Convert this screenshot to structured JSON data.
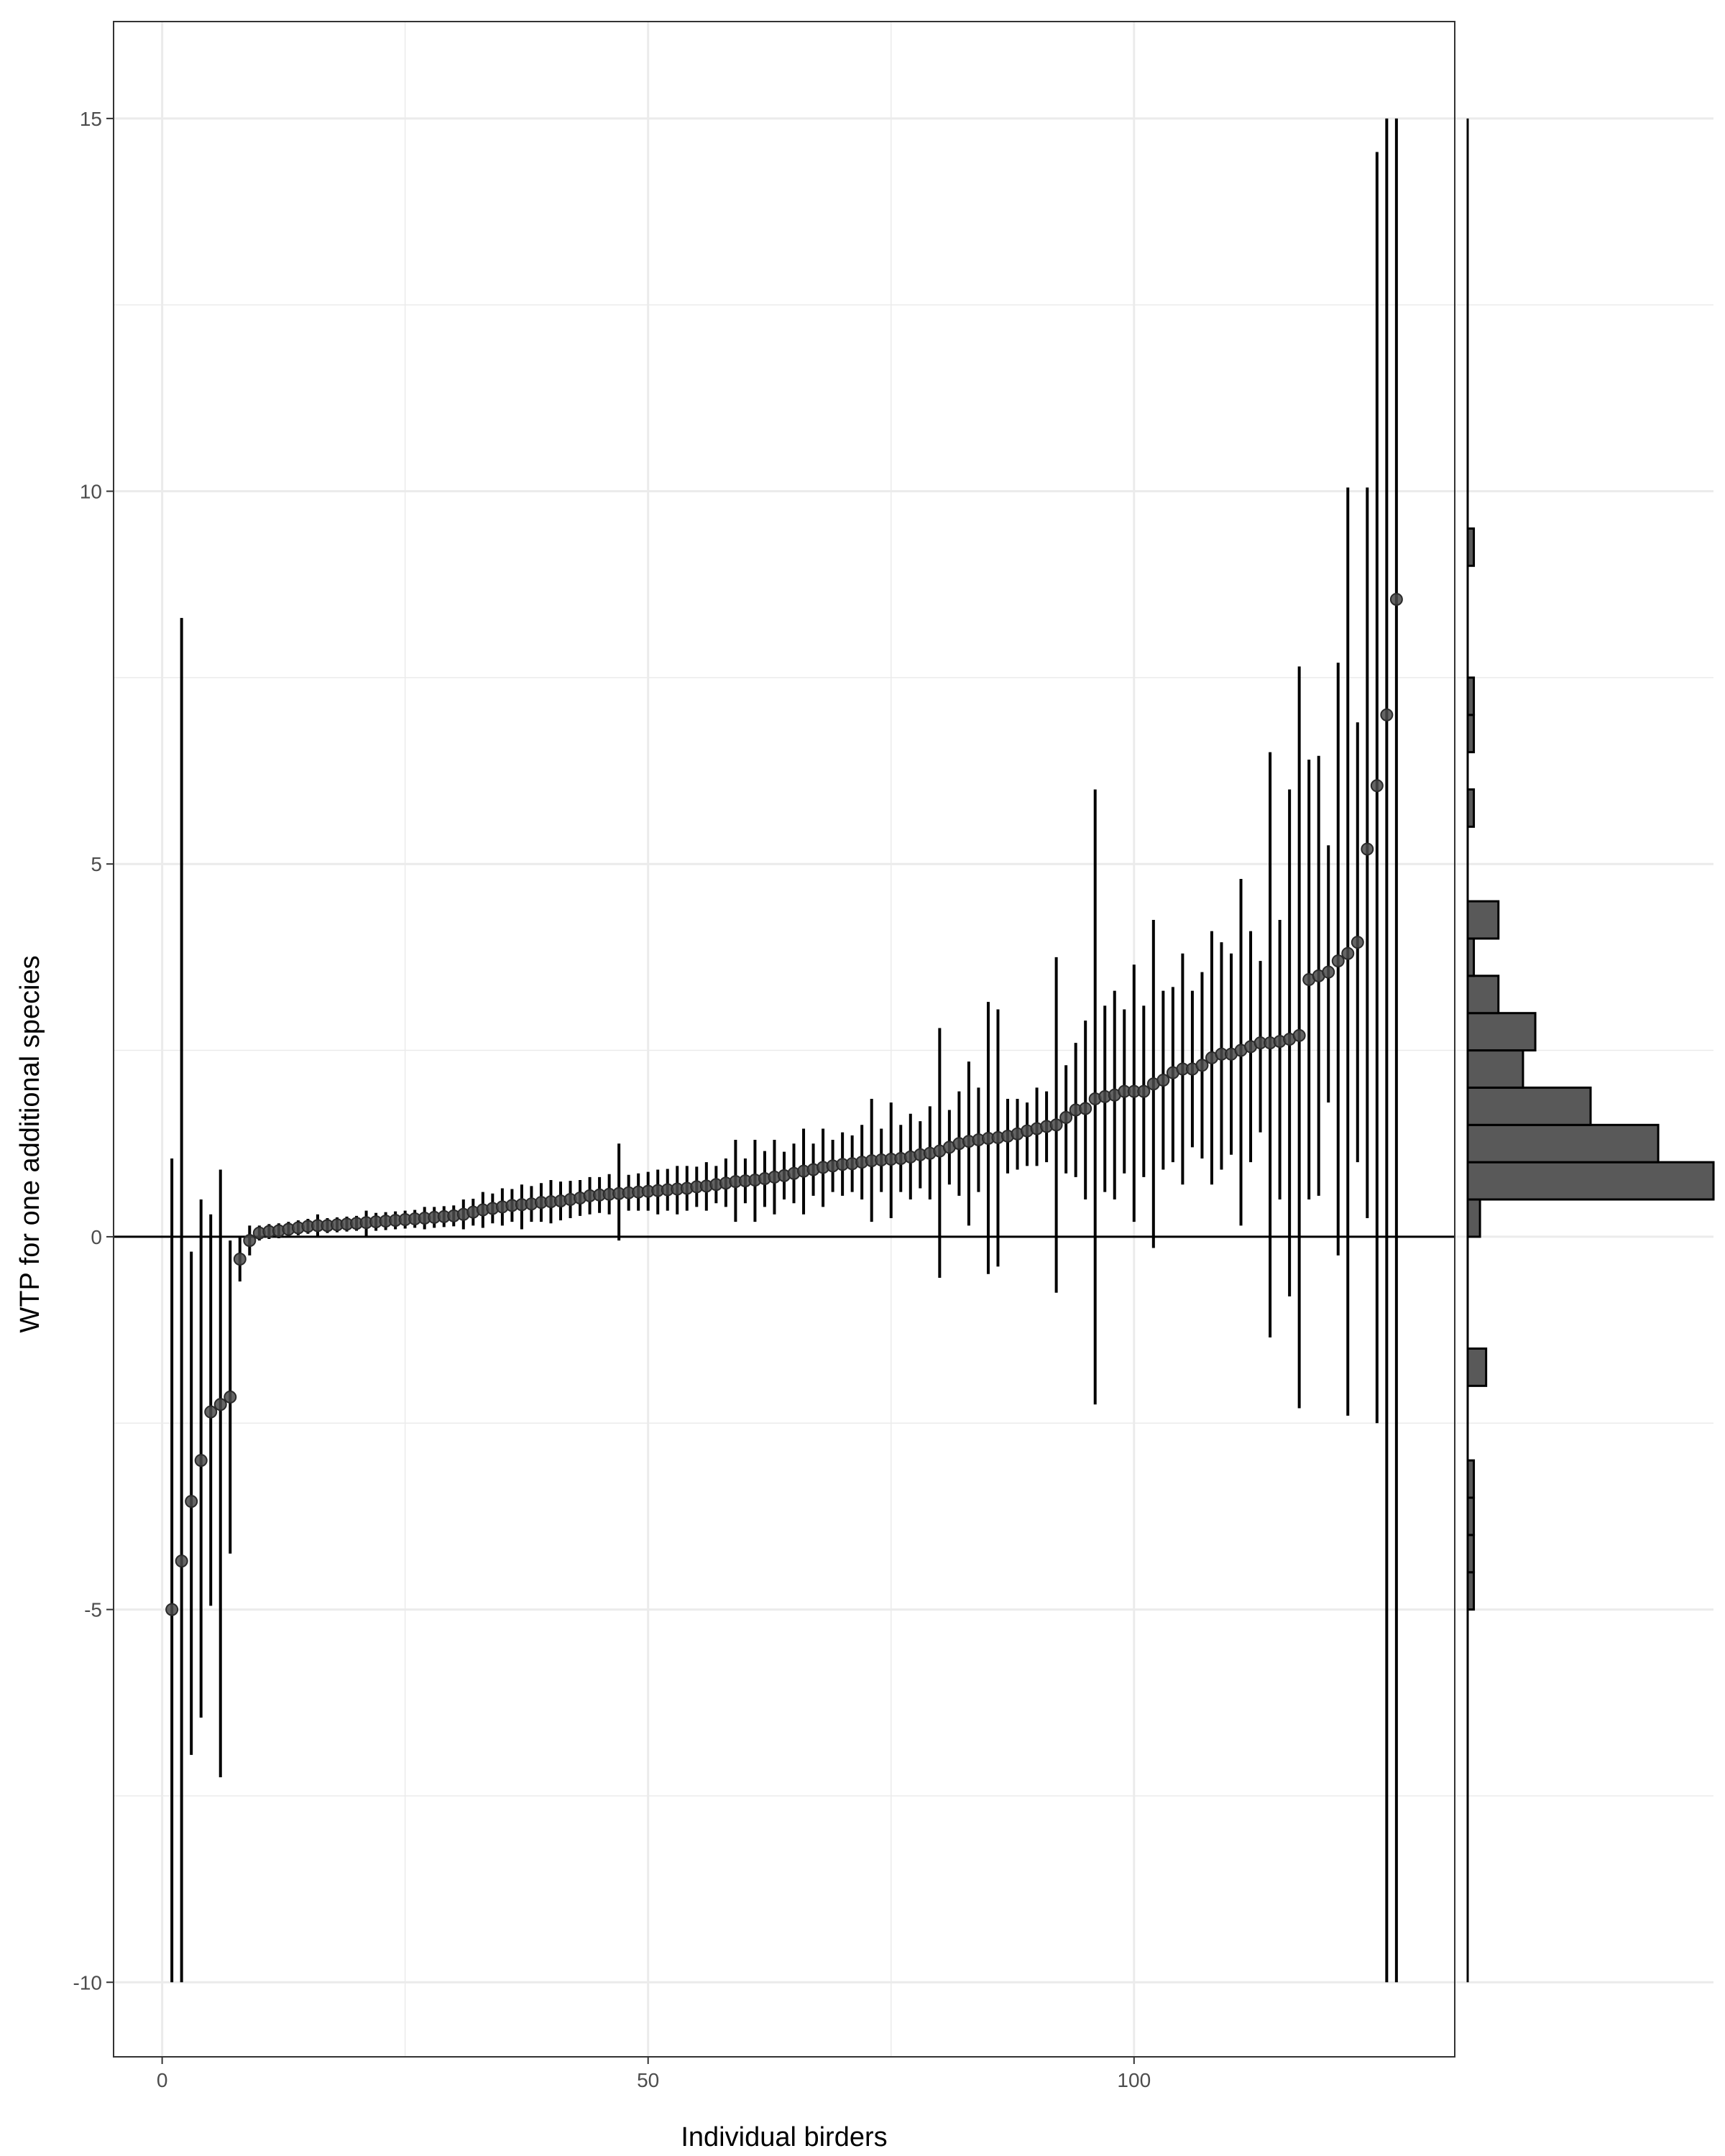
{
  "chart_data": {
    "type": "scatter",
    "xlabel": "Individual birders",
    "ylabel": "WTP for one additional species",
    "xlim": [
      -5,
      133
    ],
    "ylim": [
      -11,
      16.3
    ],
    "x_ticks": [
      0,
      50,
      100
    ],
    "y_ticks": [
      -10,
      -5,
      0,
      5,
      10,
      15
    ],
    "grid": true,
    "reference_line_y": 0,
    "colors": {
      "points": "#4a4a4a",
      "bars": "#595959",
      "lines": "#000000",
      "grid": "#ebebeb"
    },
    "series": [
      {
        "values": [
          [
            1,
            -5.0,
            -10.0,
            1.05
          ],
          [
            2,
            -4.35,
            -10.0,
            8.3
          ],
          [
            3,
            -3.55,
            -6.95,
            -0.2
          ],
          [
            4,
            -3.0,
            -6.45,
            0.5
          ],
          [
            5,
            -2.35,
            -4.95,
            0.3
          ],
          [
            6,
            -2.25,
            -7.25,
            0.9
          ],
          [
            7,
            -2.15,
            -4.25,
            -0.05
          ],
          [
            8,
            -0.3,
            -0.6,
            0.0
          ],
          [
            9,
            -0.05,
            -0.25,
            0.15
          ],
          [
            10,
            0.05,
            -0.05,
            0.15
          ],
          [
            11,
            0.07,
            -0.03,
            0.17
          ],
          [
            12,
            0.08,
            -0.02,
            0.18
          ],
          [
            13,
            0.1,
            0.0,
            0.2
          ],
          [
            14,
            0.12,
            0.02,
            0.22
          ],
          [
            15,
            0.14,
            0.04,
            0.24
          ],
          [
            16,
            0.15,
            0.0,
            0.3
          ],
          [
            17,
            0.15,
            0.05,
            0.25
          ],
          [
            18,
            0.16,
            0.06,
            0.26
          ],
          [
            19,
            0.17,
            0.07,
            0.27
          ],
          [
            20,
            0.18,
            0.08,
            0.28
          ],
          [
            21,
            0.19,
            0.0,
            0.35
          ],
          [
            22,
            0.2,
            0.08,
            0.32
          ],
          [
            23,
            0.21,
            0.09,
            0.33
          ],
          [
            24,
            0.22,
            0.1,
            0.34
          ],
          [
            25,
            0.23,
            0.11,
            0.35
          ],
          [
            26,
            0.24,
            0.12,
            0.36
          ],
          [
            27,
            0.25,
            0.1,
            0.4
          ],
          [
            28,
            0.26,
            0.12,
            0.4
          ],
          [
            29,
            0.27,
            0.13,
            0.41
          ],
          [
            30,
            0.28,
            0.14,
            0.42
          ],
          [
            31,
            0.3,
            0.1,
            0.5
          ],
          [
            32,
            0.33,
            0.15,
            0.51
          ],
          [
            33,
            0.36,
            0.12,
            0.6
          ],
          [
            34,
            0.38,
            0.18,
            0.58
          ],
          [
            35,
            0.4,
            0.15,
            0.65
          ],
          [
            36,
            0.42,
            0.2,
            0.64
          ],
          [
            37,
            0.43,
            0.1,
            0.7
          ],
          [
            38,
            0.44,
            0.2,
            0.68
          ],
          [
            39,
            0.46,
            0.2,
            0.72
          ],
          [
            40,
            0.47,
            0.18,
            0.76
          ],
          [
            41,
            0.48,
            0.22,
            0.74
          ],
          [
            42,
            0.5,
            0.25,
            0.75
          ],
          [
            43,
            0.52,
            0.28,
            0.76
          ],
          [
            44,
            0.55,
            0.3,
            0.8
          ],
          [
            45,
            0.56,
            0.32,
            0.8
          ],
          [
            46,
            0.57,
            0.3,
            0.84
          ],
          [
            47,
            0.58,
            -0.05,
            1.25
          ],
          [
            48,
            0.59,
            0.35,
            0.83
          ],
          [
            49,
            0.6,
            0.35,
            0.85
          ],
          [
            50,
            0.61,
            0.35,
            0.87
          ],
          [
            51,
            0.62,
            0.3,
            0.9
          ],
          [
            52,
            0.63,
            0.35,
            0.91
          ],
          [
            53,
            0.64,
            0.3,
            0.95
          ],
          [
            54,
            0.65,
            0.35,
            0.95
          ],
          [
            55,
            0.67,
            0.4,
            0.94
          ],
          [
            56,
            0.68,
            0.35,
            1.0
          ],
          [
            57,
            0.7,
            0.45,
            0.95
          ],
          [
            58,
            0.72,
            0.4,
            1.05
          ],
          [
            59,
            0.74,
            0.2,
            1.3
          ],
          [
            60,
            0.75,
            0.45,
            1.05
          ],
          [
            61,
            0.76,
            0.2,
            1.3
          ],
          [
            62,
            0.78,
            0.4,
            1.15
          ],
          [
            63,
            0.8,
            0.3,
            1.3
          ],
          [
            64,
            0.82,
            0.5,
            1.14
          ],
          [
            65,
            0.85,
            0.45,
            1.25
          ],
          [
            66,
            0.88,
            0.3,
            1.45
          ],
          [
            67,
            0.9,
            0.55,
            1.25
          ],
          [
            68,
            0.93,
            0.4,
            1.45
          ],
          [
            69,
            0.95,
            0.6,
            1.3
          ],
          [
            70,
            0.97,
            0.55,
            1.4
          ],
          [
            71,
            0.98,
            0.6,
            1.36
          ],
          [
            72,
            1.0,
            0.5,
            1.5
          ],
          [
            73,
            1.02,
            0.2,
            1.85
          ],
          [
            74,
            1.03,
            0.6,
            1.45
          ],
          [
            75,
            1.04,
            0.25,
            1.8
          ],
          [
            76,
            1.05,
            0.6,
            1.5
          ],
          [
            77,
            1.07,
            0.5,
            1.65
          ],
          [
            78,
            1.1,
            0.65,
            1.55
          ],
          [
            79,
            1.12,
            0.5,
            1.75
          ],
          [
            80,
            1.15,
            -0.55,
            2.8
          ],
          [
            81,
            1.2,
            0.7,
            1.7
          ],
          [
            82,
            1.25,
            0.55,
            1.95
          ],
          [
            83,
            1.28,
            0.15,
            2.35
          ],
          [
            84,
            1.3,
            0.6,
            2.0
          ],
          [
            85,
            1.32,
            -0.5,
            3.15
          ],
          [
            86,
            1.33,
            -0.4,
            3.05
          ],
          [
            87,
            1.35,
            0.85,
            1.85
          ],
          [
            88,
            1.38,
            0.9,
            1.85
          ],
          [
            89,
            1.42,
            0.95,
            1.8
          ],
          [
            90,
            1.45,
            0.95,
            2.0
          ],
          [
            91,
            1.48,
            1.0,
            1.95
          ],
          [
            92,
            1.5,
            -0.75,
            3.75
          ],
          [
            93,
            1.6,
            0.85,
            2.3
          ],
          [
            94,
            1.7,
            0.8,
            2.6
          ],
          [
            95,
            1.72,
            0.5,
            2.9
          ],
          [
            96,
            1.85,
            -2.25,
            6.0
          ],
          [
            97,
            1.88,
            0.6,
            3.1
          ],
          [
            98,
            1.9,
            0.5,
            3.3
          ],
          [
            99,
            1.95,
            0.85,
            3.05
          ],
          [
            100,
            1.95,
            0.2,
            3.65
          ],
          [
            101,
            1.95,
            0.8,
            3.1
          ],
          [
            102,
            2.05,
            -0.15,
            4.25
          ],
          [
            103,
            2.1,
            0.9,
            3.3
          ],
          [
            104,
            2.2,
            1.0,
            3.35
          ],
          [
            105,
            2.25,
            0.7,
            3.8
          ],
          [
            106,
            2.25,
            1.2,
            3.3
          ],
          [
            107,
            2.3,
            1.05,
            3.55
          ],
          [
            108,
            2.4,
            0.7,
            4.1
          ],
          [
            109,
            2.45,
            0.9,
            3.95
          ],
          [
            110,
            2.45,
            1.1,
            3.8
          ],
          [
            111,
            2.5,
            0.15,
            4.8
          ],
          [
            112,
            2.55,
            1.0,
            4.1
          ],
          [
            113,
            2.6,
            1.4,
            3.7
          ],
          [
            114,
            2.6,
            -1.35,
            6.5
          ],
          [
            115,
            2.62,
            0.5,
            4.25
          ],
          [
            116,
            2.65,
            -0.8,
            6.0
          ],
          [
            117,
            2.7,
            -2.3,
            7.65
          ],
          [
            118,
            3.45,
            0.5,
            6.4
          ],
          [
            119,
            3.5,
            0.55,
            6.45
          ],
          [
            120,
            3.55,
            1.8,
            5.25
          ],
          [
            121,
            3.7,
            -0.25,
            7.7
          ],
          [
            122,
            3.8,
            -2.4,
            10.05
          ],
          [
            123,
            3.95,
            1.0,
            6.9
          ],
          [
            124,
            5.2,
            0.25,
            10.05
          ],
          [
            125,
            6.05,
            -2.5,
            14.55
          ],
          [
            126,
            7.0,
            -10.0,
            15.0
          ],
          [
            127,
            8.55,
            -10.0,
            15.0
          ]
        ]
      }
    ],
    "histogram": {
      "bin_width": 0.5,
      "bins": [
        [
          -5.0,
          1
        ],
        [
          -4.5,
          1
        ],
        [
          -4.0,
          1
        ],
        [
          -3.5,
          1
        ],
        [
          -3.0,
          0
        ],
        [
          -2.5,
          0
        ],
        [
          -2.0,
          3
        ],
        [
          -1.5,
          0
        ],
        [
          -1.0,
          0
        ],
        [
          -0.5,
          0
        ],
        [
          0.0,
          2
        ],
        [
          0.5,
          40
        ],
        [
          1.0,
          31
        ],
        [
          1.5,
          20
        ],
        [
          2.0,
          9
        ],
        [
          2.5,
          11
        ],
        [
          3.0,
          5
        ],
        [
          3.5,
          1
        ],
        [
          4.0,
          5
        ],
        [
          4.5,
          0
        ],
        [
          5.0,
          0
        ],
        [
          5.5,
          1
        ],
        [
          6.0,
          0
        ],
        [
          6.5,
          1
        ],
        [
          7.0,
          1
        ],
        [
          7.5,
          0
        ],
        [
          8.0,
          0
        ],
        [
          8.5,
          0
        ],
        [
          9.0,
          1
        ],
        [
          9.5,
          0
        ]
      ],
      "max_count": 40,
      "range_line": [
        -10,
        15
      ]
    }
  }
}
